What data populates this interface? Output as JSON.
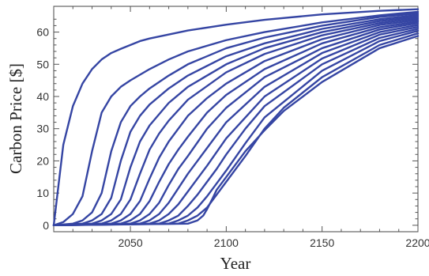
{
  "chart_data": {
    "type": "line",
    "title": "",
    "xlabel": "Year",
    "ylabel": "Carbon Price [$]",
    "xlim": [
      2010,
      2200
    ],
    "ylim": [
      -2,
      68
    ],
    "xticks": [
      2050,
      2100,
      2150,
      2200
    ],
    "yticks": [
      0,
      10,
      20,
      30,
      40,
      50,
      60
    ],
    "grid": false,
    "legend": "none",
    "line_color": "#3545a3",
    "series": [
      {
        "points": [
          [
            2010,
            0
          ],
          [
            2015,
            25
          ],
          [
            2020,
            37
          ],
          [
            2025,
            44
          ],
          [
            2030,
            48.5
          ],
          [
            2035,
            51.5
          ],
          [
            2040,
            53.5
          ],
          [
            2045,
            54.8
          ],
          [
            2050,
            56
          ],
          [
            2055,
            57.2
          ],
          [
            2060,
            58
          ],
          [
            2080,
            60.5
          ],
          [
            2100,
            62.3
          ],
          [
            2120,
            63.8
          ],
          [
            2150,
            65.5
          ],
          [
            2180,
            66.6
          ],
          [
            2200,
            67.1
          ]
        ]
      },
      {
        "points": [
          [
            2010,
            0
          ],
          [
            2015,
            1
          ],
          [
            2020,
            3.5
          ],
          [
            2025,
            9
          ],
          [
            2030,
            23
          ],
          [
            2035,
            35
          ],
          [
            2040,
            40
          ],
          [
            2045,
            43
          ],
          [
            2050,
            45
          ],
          [
            2060,
            48.5
          ],
          [
            2070,
            51.5
          ],
          [
            2080,
            54
          ],
          [
            2100,
            57.5
          ],
          [
            2120,
            60
          ],
          [
            2150,
            63
          ],
          [
            2180,
            65.2
          ],
          [
            2200,
            66.3
          ]
        ]
      },
      {
        "points": [
          [
            2010,
            0
          ],
          [
            2020,
            0.5
          ],
          [
            2025,
            1.5
          ],
          [
            2030,
            4
          ],
          [
            2035,
            10
          ],
          [
            2040,
            23
          ],
          [
            2045,
            32
          ],
          [
            2050,
            37
          ],
          [
            2055,
            40
          ],
          [
            2060,
            42.5
          ],
          [
            2070,
            46.5
          ],
          [
            2080,
            50
          ],
          [
            2100,
            55
          ],
          [
            2120,
            58.3
          ],
          [
            2150,
            62
          ],
          [
            2180,
            64.7
          ],
          [
            2200,
            65.8
          ]
        ]
      },
      {
        "points": [
          [
            2010,
            0
          ],
          [
            2025,
            0.5
          ],
          [
            2030,
            1.5
          ],
          [
            2035,
            3.5
          ],
          [
            2040,
            8.5
          ],
          [
            2045,
            20
          ],
          [
            2050,
            29
          ],
          [
            2055,
            34
          ],
          [
            2060,
            37.5
          ],
          [
            2070,
            42.5
          ],
          [
            2080,
            46.5
          ],
          [
            2100,
            52.5
          ],
          [
            2120,
            56.5
          ],
          [
            2150,
            61
          ],
          [
            2180,
            64
          ],
          [
            2200,
            65.3
          ]
        ]
      },
      {
        "points": [
          [
            2010,
            0
          ],
          [
            2030,
            0.5
          ],
          [
            2035,
            1.5
          ],
          [
            2040,
            3.5
          ],
          [
            2045,
            8
          ],
          [
            2050,
            18
          ],
          [
            2055,
            26
          ],
          [
            2060,
            31
          ],
          [
            2070,
            38
          ],
          [
            2080,
            43
          ],
          [
            2100,
            50
          ],
          [
            2120,
            55
          ],
          [
            2150,
            60
          ],
          [
            2180,
            63.4
          ],
          [
            2200,
            64.8
          ]
        ]
      },
      {
        "points": [
          [
            2010,
            0
          ],
          [
            2035,
            0.5
          ],
          [
            2040,
            1.5
          ],
          [
            2045,
            3.5
          ],
          [
            2050,
            8
          ],
          [
            2055,
            16
          ],
          [
            2060,
            23.5
          ],
          [
            2065,
            28.5
          ],
          [
            2070,
            32.5
          ],
          [
            2080,
            39
          ],
          [
            2100,
            47.5
          ],
          [
            2120,
            53.2
          ],
          [
            2150,
            59
          ],
          [
            2180,
            62.8
          ],
          [
            2200,
            64.3
          ]
        ]
      },
      {
        "points": [
          [
            2010,
            0
          ],
          [
            2040,
            0.5
          ],
          [
            2045,
            1.5
          ],
          [
            2050,
            3.5
          ],
          [
            2055,
            7.5
          ],
          [
            2060,
            14.5
          ],
          [
            2065,
            21
          ],
          [
            2070,
            26
          ],
          [
            2080,
            34
          ],
          [
            2090,
            39.5
          ],
          [
            2100,
            44
          ],
          [
            2120,
            51
          ],
          [
            2150,
            57.8
          ],
          [
            2180,
            62.2
          ],
          [
            2200,
            63.8
          ]
        ]
      },
      {
        "points": [
          [
            2010,
            0
          ],
          [
            2045,
            0.5
          ],
          [
            2050,
            1.5
          ],
          [
            2055,
            3.5
          ],
          [
            2060,
            7.5
          ],
          [
            2065,
            13.5
          ],
          [
            2070,
            19
          ],
          [
            2075,
            23.5
          ],
          [
            2080,
            27.5
          ],
          [
            2090,
            35
          ],
          [
            2100,
            40.5
          ],
          [
            2120,
            48.5
          ],
          [
            2150,
            56.5
          ],
          [
            2180,
            61.5
          ],
          [
            2200,
            63.3
          ]
        ]
      },
      {
        "points": [
          [
            2010,
            0
          ],
          [
            2050,
            0.5
          ],
          [
            2055,
            1.5
          ],
          [
            2060,
            3.5
          ],
          [
            2065,
            7
          ],
          [
            2070,
            12.5
          ],
          [
            2075,
            17.5
          ],
          [
            2080,
            21.5
          ],
          [
            2090,
            30
          ],
          [
            2100,
            36.5
          ],
          [
            2120,
            46
          ],
          [
            2150,
            55
          ],
          [
            2180,
            60.8
          ],
          [
            2200,
            62.8
          ]
        ]
      },
      {
        "points": [
          [
            2010,
            0
          ],
          [
            2055,
            0.5
          ],
          [
            2060,
            1.5
          ],
          [
            2065,
            3.5
          ],
          [
            2070,
            7
          ],
          [
            2075,
            11.5
          ],
          [
            2080,
            16
          ],
          [
            2085,
            20
          ],
          [
            2090,
            24
          ],
          [
            2100,
            32
          ],
          [
            2120,
            43
          ],
          [
            2150,
            53.5
          ],
          [
            2180,
            60
          ],
          [
            2200,
            62.2
          ]
        ]
      },
      {
        "points": [
          [
            2010,
            0
          ],
          [
            2060,
            0.5
          ],
          [
            2065,
            1.5
          ],
          [
            2070,
            3.5
          ],
          [
            2075,
            6.5
          ],
          [
            2080,
            10.5
          ],
          [
            2085,
            14.5
          ],
          [
            2090,
            18.5
          ],
          [
            2100,
            27
          ],
          [
            2120,
            40
          ],
          [
            2150,
            51.8
          ],
          [
            2180,
            59.2
          ],
          [
            2200,
            61.6
          ]
        ]
      },
      {
        "points": [
          [
            2010,
            0
          ],
          [
            2065,
            0.5
          ],
          [
            2070,
            1.5
          ],
          [
            2075,
            3
          ],
          [
            2080,
            6
          ],
          [
            2085,
            9.5
          ],
          [
            2090,
            13.5
          ],
          [
            2095,
            17.5
          ],
          [
            2100,
            22
          ],
          [
            2110,
            30
          ],
          [
            2120,
            37
          ],
          [
            2150,
            50
          ],
          [
            2180,
            58.2
          ],
          [
            2200,
            61
          ]
        ]
      },
      {
        "points": [
          [
            2010,
            0
          ],
          [
            2070,
            0.5
          ],
          [
            2075,
            1.5
          ],
          [
            2080,
            3
          ],
          [
            2085,
            5.5
          ],
          [
            2090,
            9
          ],
          [
            2095,
            13
          ],
          [
            2100,
            17
          ],
          [
            2110,
            25.5
          ],
          [
            2120,
            33.5
          ],
          [
            2150,
            48
          ],
          [
            2180,
            57.2
          ],
          [
            2200,
            60.4
          ]
        ]
      },
      {
        "points": [
          [
            2010,
            0
          ],
          [
            2075,
            0.5
          ],
          [
            2080,
            1.5
          ],
          [
            2085,
            3
          ],
          [
            2090,
            5.5
          ],
          [
            2095,
            9.5
          ],
          [
            2100,
            13.5
          ],
          [
            2110,
            21.5
          ],
          [
            2120,
            30
          ],
          [
            2130,
            36.5
          ],
          [
            2150,
            46
          ],
          [
            2180,
            56
          ],
          [
            2200,
            59.6
          ]
        ]
      },
      {
        "points": [
          [
            2010,
            0
          ],
          [
            2080,
            0.5
          ],
          [
            2085,
            1.5
          ],
          [
            2088,
            3
          ],
          [
            2090,
            5
          ],
          [
            2093,
            8.5
          ],
          [
            2095,
            11
          ],
          [
            2100,
            15
          ],
          [
            2110,
            23
          ],
          [
            2120,
            29.5
          ],
          [
            2130,
            35.5
          ],
          [
            2150,
            44.5
          ],
          [
            2180,
            55
          ],
          [
            2200,
            58.8
          ]
        ]
      }
    ]
  }
}
